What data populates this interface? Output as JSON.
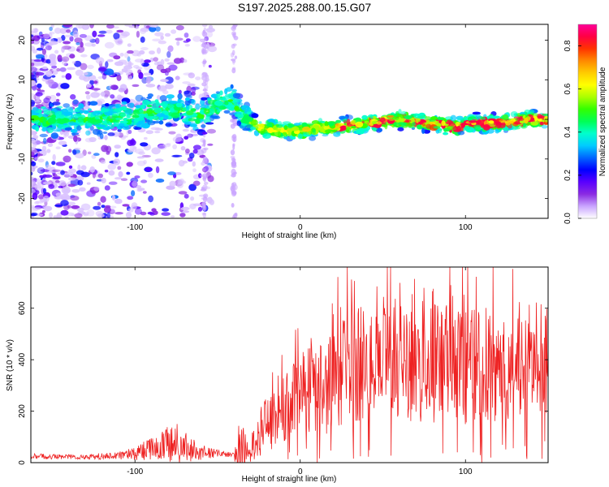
{
  "title": "S197.2025.288.00.15.G07",
  "chart_data": [
    {
      "type": "heatmap",
      "name": "spectrogram",
      "xlabel": "Height of straight line (km)",
      "ylabel": "Frequency (Hz)",
      "xlim": [
        -163,
        150
      ],
      "ylim": [
        -25,
        24
      ],
      "x_ticks": [
        -100,
        0,
        100
      ],
      "y_ticks": [
        -20,
        -10,
        0,
        10,
        20
      ],
      "ridge": {
        "x": [
          -163,
          -120,
          -100,
          -80,
          -60,
          -45,
          -40,
          -35,
          -25,
          -10,
          0,
          10,
          20,
          40,
          60,
          80,
          95,
          100,
          120,
          140,
          150
        ],
        "y": [
          0,
          0,
          1,
          3,
          1,
          5,
          4,
          1,
          -2,
          -3,
          -3,
          -2,
          -2,
          -1,
          0,
          -1,
          -2,
          -1,
          -1,
          0,
          0
        ]
      },
      "colorbar": {
        "label": "Normalized spectral amplitude",
        "range": [
          0,
          0.9
        ],
        "ticks": [
          0.0,
          0.2,
          0.4,
          0.6,
          0.8
        ],
        "tick_labels": [
          "0.0",
          "0.2",
          "0.4",
          "0.6",
          "0.8"
        ],
        "colors": [
          "#ffffff",
          "#c9a4ff",
          "#8a2be2",
          "#5a00ff",
          "#0000ff",
          "#0066ff",
          "#00ccff",
          "#00ffcc",
          "#00ff55",
          "#33ff00",
          "#aaff00",
          "#ffff00",
          "#ffcc00",
          "#ff8800",
          "#ff3300",
          "#ff0044",
          "#ff0099"
        ]
      }
    },
    {
      "type": "line",
      "name": "snr",
      "xlabel": "Height of straight line (km)",
      "ylabel": "SNR (10 * v/v)",
      "xlim": [
        -163,
        150
      ],
      "ylim": [
        0,
        760
      ],
      "x_ticks": [
        -100,
        0,
        100
      ],
      "y_ticks": [
        0,
        200,
        400,
        600
      ],
      "color": "#ee2222",
      "envelope": {
        "x": [
          -163,
          -130,
          -110,
          -100,
          -90,
          -80,
          -75,
          -70,
          -60,
          -50,
          -40,
          -35,
          -33,
          -31,
          -25,
          -20,
          -10,
          0,
          10,
          20,
          30,
          40,
          50,
          60,
          80,
          100,
          120,
          140,
          150
        ],
        "mean": [
          25,
          22,
          28,
          35,
          55,
          70,
          75,
          60,
          40,
          35,
          30,
          30,
          35,
          40,
          110,
          150,
          210,
          260,
          300,
          320,
          360,
          380,
          370,
          390,
          380,
          370,
          390,
          410,
          420
        ],
        "spread": [
          10,
          10,
          15,
          25,
          45,
          70,
          90,
          60,
          30,
          15,
          8,
          200,
          60,
          40,
          90,
          110,
          130,
          160,
          190,
          210,
          250,
          230,
          240,
          220,
          240,
          230,
          230,
          220,
          250
        ]
      }
    }
  ]
}
